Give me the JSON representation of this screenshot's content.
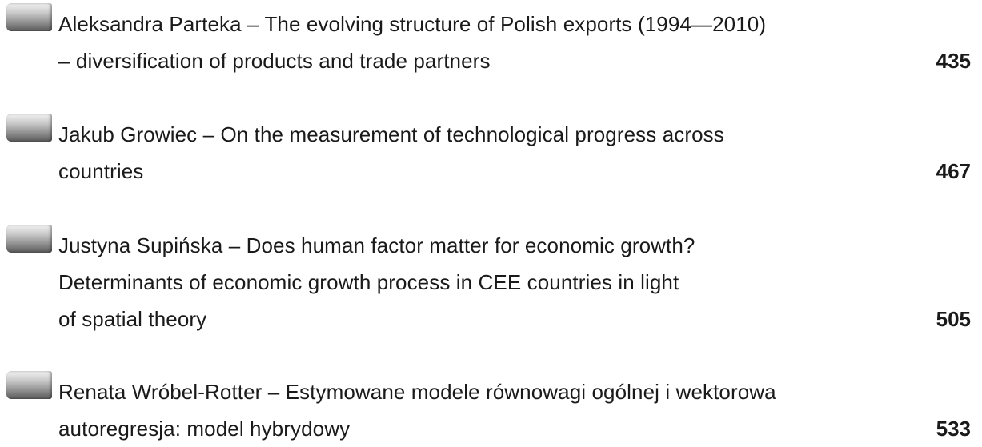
{
  "entries": [
    {
      "lines": [
        "Aleksandra Parteka – The evolving structure of Polish exports (1994—2010)",
        "– diversification of products and trade partners"
      ],
      "page": 435
    },
    {
      "lines": [
        "Jakub Growiec – On the measurement of technological progress across",
        "countries"
      ],
      "page": 467
    },
    {
      "lines": [
        "Justyna Supińska – Does human factor matter for economic growth?",
        "Determinants of economic growth process in CEE countries in light",
        "of spatial theory"
      ],
      "page": 505
    },
    {
      "lines": [
        "Renata Wróbel-Rotter – Estymowane modele równowagi ogólnej i wektorowa",
        "autoregresja: model hybrydowy"
      ],
      "page": 533
    }
  ]
}
